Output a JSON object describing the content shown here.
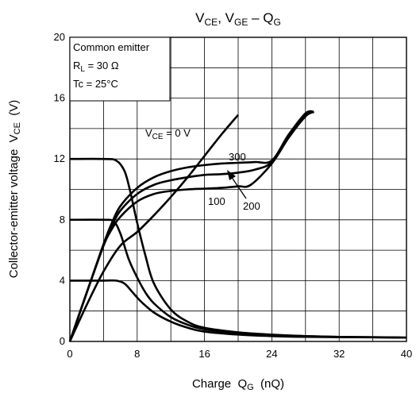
{
  "chart_data": {
    "type": "line",
    "title": "V_CE, V_GE – Q_G",
    "title_parts": {
      "v1": "V",
      "v1_sub": "CE",
      "sep1": ", ",
      "v2": "V",
      "v2_sub": "GE",
      "sep2": " – ",
      "q": "Q",
      "q_sub": "G"
    },
    "xlabel": "Charge  Q_G  (nQ)",
    "xlabel_parts": {
      "pre": "Charge  ",
      "sym": "Q",
      "sub": "G",
      "unit": "  (nQ)"
    },
    "ylabel": "Collector-emitter voltage  V_CE  (V)",
    "ylabel_parts": {
      "pre": "Collector-emitter voltage  ",
      "sym": "V",
      "sub": "CE",
      "unit": "  (V)"
    },
    "xlim": [
      0,
      40
    ],
    "ylim": [
      0,
      20
    ],
    "xticks": [
      0,
      8,
      16,
      24,
      32,
      40
    ],
    "yticks": [
      0,
      4,
      8,
      12,
      16,
      20
    ],
    "grid": true,
    "info_box": {
      "line1": "Common emitter",
      "line2_pre": "R",
      "line2_sub": "L",
      "line2_post": " = 30 Ω",
      "line3": "Tc = 25°C"
    },
    "annotations": {
      "vce0": {
        "pre": "V",
        "sub": "CE",
        "post": " = 0 V"
      },
      "a300": "300",
      "a200": "200",
      "a100": "100"
    },
    "series": [
      {
        "name": "V_CE = 0 V",
        "kind": "VGE",
        "x": [
          0,
          2,
          4,
          6,
          8,
          10,
          12,
          14,
          16,
          18,
          20
        ],
        "y": [
          0,
          2.4,
          4.6,
          6.3,
          7.2,
          8.3,
          9.5,
          10.8,
          12.2,
          13.6,
          14.9
        ]
      },
      {
        "name": "100",
        "kind": "VGE",
        "x": [
          0,
          2,
          4,
          5,
          6,
          8,
          10,
          12,
          14,
          16,
          18,
          20,
          21.5,
          24,
          26,
          28,
          29
        ],
        "y": [
          0,
          3.2,
          6.3,
          7.4,
          8.2,
          9.2,
          9.7,
          9.9,
          10.0,
          10.05,
          10.1,
          10.2,
          10.3,
          11.7,
          13.4,
          14.8,
          15.1
        ]
      },
      {
        "name": "200",
        "kind": "VGE",
        "x": [
          0,
          2,
          4,
          5,
          6,
          8,
          10,
          12,
          14,
          16,
          18,
          20,
          22,
          24,
          26,
          28,
          29
        ],
        "y": [
          0,
          3.2,
          6.3,
          7.6,
          8.6,
          9.7,
          10.3,
          10.6,
          10.8,
          10.95,
          11.0,
          11.1,
          11.3,
          11.8,
          13.5,
          14.9,
          15.1
        ]
      },
      {
        "name": "300",
        "kind": "VGE",
        "x": [
          0,
          2,
          4,
          5,
          6,
          8,
          10,
          12,
          14,
          16,
          18,
          20,
          22,
          24,
          26,
          28,
          29
        ],
        "y": [
          0,
          3.2,
          6.4,
          7.8,
          8.9,
          10.1,
          10.8,
          11.2,
          11.45,
          11.6,
          11.7,
          11.75,
          11.8,
          11.9,
          13.6,
          15.0,
          15.1
        ]
      },
      {
        "name": "300",
        "kind": "VCE",
        "x": [
          0,
          4,
          5.5,
          6.5,
          7.2,
          8,
          9,
          10,
          12,
          14,
          16,
          20,
          24,
          28,
          32,
          36,
          40
        ],
        "y": [
          12,
          12,
          11.9,
          11.2,
          9.8,
          7.8,
          5.6,
          3.8,
          2.1,
          1.3,
          0.9,
          0.6,
          0.45,
          0.35,
          0.3,
          0.28,
          0.25
        ]
      },
      {
        "name": "200",
        "kind": "VCE",
        "x": [
          0,
          4,
          5.2,
          6,
          7,
          8,
          9,
          10,
          12,
          14,
          16,
          20,
          24,
          28,
          32,
          36,
          40
        ],
        "y": [
          8,
          8,
          7.9,
          7.1,
          5.4,
          4.2,
          3.2,
          2.5,
          1.6,
          1.1,
          0.8,
          0.55,
          0.42,
          0.35,
          0.3,
          0.28,
          0.25
        ]
      },
      {
        "name": "100",
        "kind": "VCE",
        "x": [
          0,
          4,
          5.5,
          6.5,
          7.5,
          8.5,
          10,
          12,
          14,
          16,
          20,
          24,
          28,
          32,
          36,
          40
        ],
        "y": [
          4,
          4,
          4,
          3.8,
          3.2,
          2.6,
          1.9,
          1.3,
          0.9,
          0.65,
          0.45,
          0.35,
          0.3,
          0.28,
          0.27,
          0.25
        ]
      }
    ]
  }
}
